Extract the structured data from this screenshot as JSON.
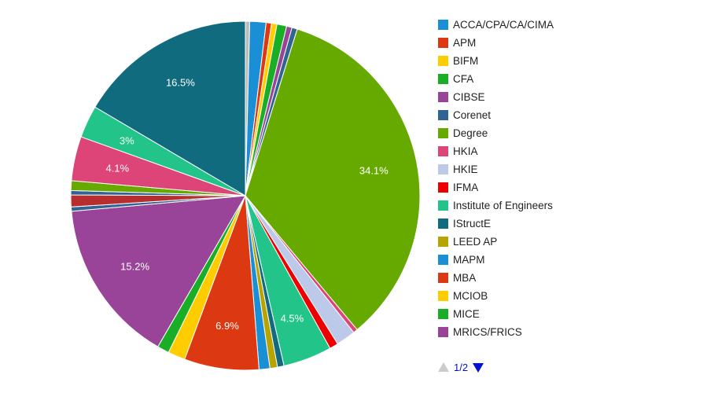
{
  "chart_data": {
    "type": "pie",
    "slices": [
      {
        "label": "",
        "value": 0.4,
        "color": "#bbbbbb",
        "shown_label": ""
      },
      {
        "label": "ACCA/CPA/CA/CIMA",
        "value": 1.5,
        "color": "#1b8fd6",
        "shown_label": ""
      },
      {
        "label": "APM",
        "value": 0.5,
        "color": "#dc3912",
        "shown_label": ""
      },
      {
        "label": "BIFM",
        "value": 0.5,
        "color": "#ffcc00",
        "shown_label": ""
      },
      {
        "label": "CFA",
        "value": 0.9,
        "color": "#1aae27",
        "shown_label": ""
      },
      {
        "label": "CIBSE",
        "value": 0.5,
        "color": "#994499",
        "shown_label": ""
      },
      {
        "label": "Corenet",
        "value": 0.5,
        "color": "#316395",
        "shown_label": ""
      },
      {
        "label": "Degree",
        "value": 34.1,
        "color": "#66aa00",
        "shown_label": "34.1%"
      },
      {
        "label": "HKIA",
        "value": 0.4,
        "color": "#dd4477",
        "shown_label": ""
      },
      {
        "label": "HKIE",
        "value": 1.8,
        "color": "#bcc9e8",
        "shown_label": ""
      },
      {
        "label": "IFMA",
        "value": 0.8,
        "color": "#ee0000",
        "shown_label": ""
      },
      {
        "label": "Institute of Engineers",
        "value": 4.5,
        "color": "#22c48a",
        "shown_label": "4.5%"
      },
      {
        "label": "IStructE",
        "value": 0.6,
        "color": "#106b7f",
        "shown_label": ""
      },
      {
        "label": "LEED AP",
        "value": 0.7,
        "color": "#b8a400",
        "shown_label": ""
      },
      {
        "label": "MAPM",
        "value": 1.0,
        "color": "#1b8fd6",
        "shown_label": ""
      },
      {
        "label": "MBA",
        "value": 6.9,
        "color": "#dc3912",
        "shown_label": "6.9%"
      },
      {
        "label": "MCIOB",
        "value": 1.6,
        "color": "#ffcc00",
        "shown_label": ""
      },
      {
        "label": "MICE",
        "value": 1.1,
        "color": "#1aae27",
        "shown_label": ""
      },
      {
        "label": "MRICS/FRICS",
        "value": 15.2,
        "color": "#994499",
        "shown_label": "15.2%"
      },
      {
        "label": "",
        "value": 0.4,
        "color": "#316395",
        "shown_label": ""
      },
      {
        "label": "",
        "value": 1.1,
        "color": "#b82e2e",
        "shown_label": ""
      },
      {
        "label": "",
        "value": 0.4,
        "color": "#316395",
        "shown_label": ""
      },
      {
        "label": "",
        "value": 0.9,
        "color": "#66aa00",
        "shown_label": ""
      },
      {
        "label": "",
        "value": 4.1,
        "color": "#dd4477",
        "shown_label": "4.1%"
      },
      {
        "label": "",
        "value": 3.0,
        "color": "#22c48a",
        "shown_label": "3%"
      },
      {
        "label": "",
        "value": 16.5,
        "color": "#106b7f",
        "shown_label": "16.5%"
      }
    ]
  },
  "legend": [
    {
      "label": "ACCA/CPA/CA/CIMA",
      "color": "#1b8fd6"
    },
    {
      "label": "APM",
      "color": "#dc3912"
    },
    {
      "label": "BIFM",
      "color": "#ffcc00"
    },
    {
      "label": "CFA",
      "color": "#1aae27"
    },
    {
      "label": "CIBSE",
      "color": "#994499"
    },
    {
      "label": "Corenet",
      "color": "#316395"
    },
    {
      "label": "Degree",
      "color": "#66aa00"
    },
    {
      "label": "HKIA",
      "color": "#dd4477"
    },
    {
      "label": "HKIE",
      "color": "#bcc9e8"
    },
    {
      "label": "IFMA",
      "color": "#ee0000"
    },
    {
      "label": "Institute of Engineers",
      "color": "#22c48a"
    },
    {
      "label": "IStructE",
      "color": "#106b7f"
    },
    {
      "label": "LEED AP",
      "color": "#b8a400"
    },
    {
      "label": "MAPM",
      "color": "#1b8fd6"
    },
    {
      "label": "MBA",
      "color": "#dc3912"
    },
    {
      "label": "MCIOB",
      "color": "#ffcc00"
    },
    {
      "label": "MICE",
      "color": "#1aae27"
    },
    {
      "label": "MRICS/FRICS",
      "color": "#994499"
    }
  ],
  "pager": {
    "text": "1/2",
    "prev_icon": "triangle-up-icon",
    "next_icon": "triangle-down-icon"
  }
}
